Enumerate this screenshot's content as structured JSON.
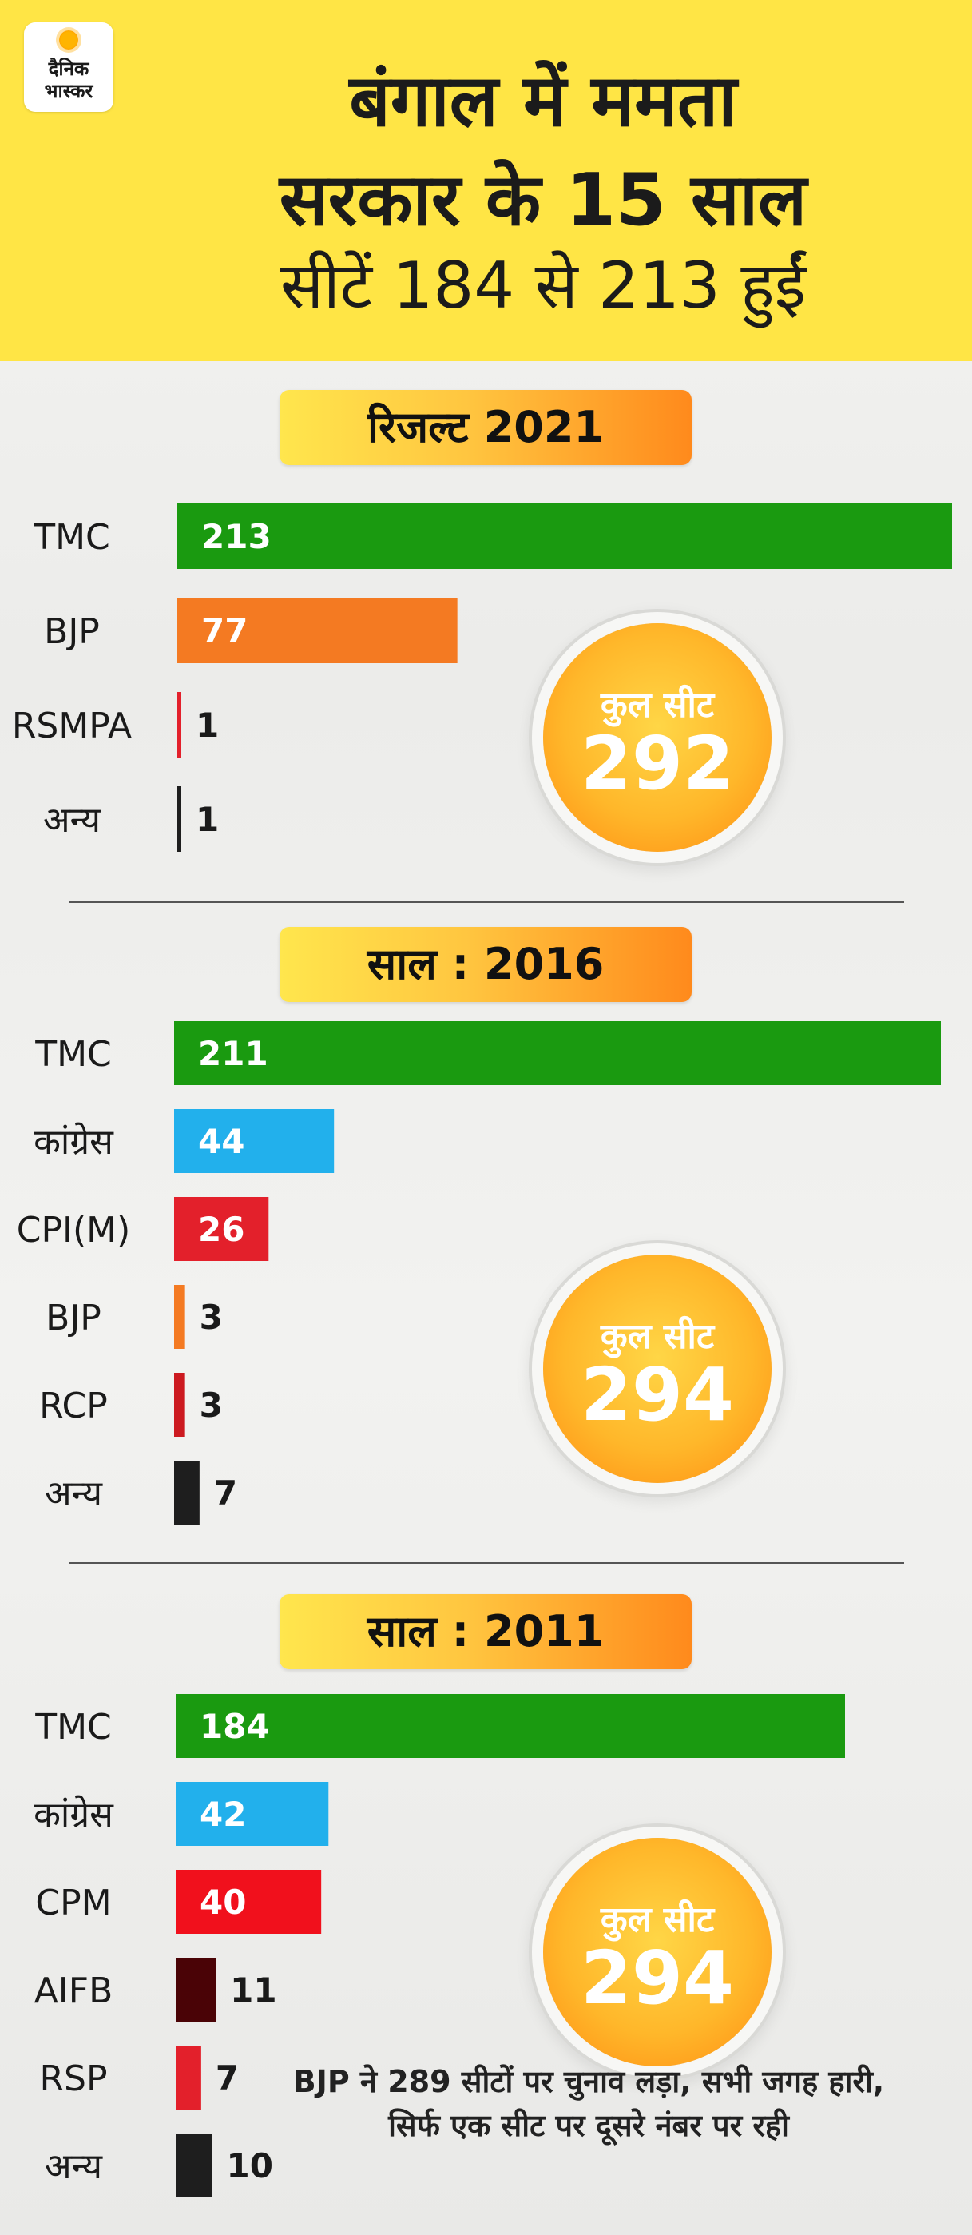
{
  "header": {
    "logo_line1": "दैनिक",
    "logo_line2": "भास्कर",
    "title_line1": "बंगाल में ममता",
    "title_line2": "सरकार के 15 साल",
    "subtitle": "सीटें 184 से 213 हुईं"
  },
  "colors": {
    "green": "#1a9a10",
    "orange": "#f47a22",
    "red": "#e3202b",
    "blue": "#22b0ec",
    "black": "#1e1e1e",
    "maroon": "#4a0306",
    "yellow": "#ffe545"
  },
  "chart_data": [
    {
      "type": "bar",
      "orientation": "horizontal",
      "title": "रिजल्ट 2021",
      "categories": [
        "TMC",
        "BJP",
        "RSMPA",
        "अन्य"
      ],
      "values": [
        213,
        77,
        1,
        1
      ],
      "colors": [
        "#1a9a10",
        "#f47a22",
        "#e3202b",
        "#1e1e1e"
      ],
      "total_label": "कुल सीट",
      "total": "292"
    },
    {
      "type": "bar",
      "orientation": "horizontal",
      "title": "साल : 2016",
      "categories": [
        "TMC",
        "कांग्रेस",
        "CPI(M)",
        "BJP",
        "RCP",
        "अन्य"
      ],
      "values": [
        211,
        44,
        26,
        3,
        3,
        7
      ],
      "colors": [
        "#1a9a10",
        "#22b0ec",
        "#e3202b",
        "#f47a22",
        "#cc1a20",
        "#1e1e1e"
      ],
      "total_label": "कुल सीट",
      "total": "294"
    },
    {
      "type": "bar",
      "orientation": "horizontal",
      "title": "साल : 2011",
      "categories": [
        "TMC",
        "कांग्रेस",
        "CPM",
        "AIFB",
        "RSP",
        "अन्य"
      ],
      "values": [
        184,
        42,
        40,
        11,
        7,
        10
      ],
      "colors": [
        "#1a9a10",
        "#22b0ec",
        "#f1101c",
        "#4a0306",
        "#e3202b",
        "#1e1e1e"
      ],
      "total_label": "कुल सीट",
      "total": "294",
      "annotation": "BJP ने 289 सीटों पर चुनाव लड़ा, सभी जगह हारी, सिर्फ एक सीट पर दूसरे नंबर पर रही"
    }
  ]
}
